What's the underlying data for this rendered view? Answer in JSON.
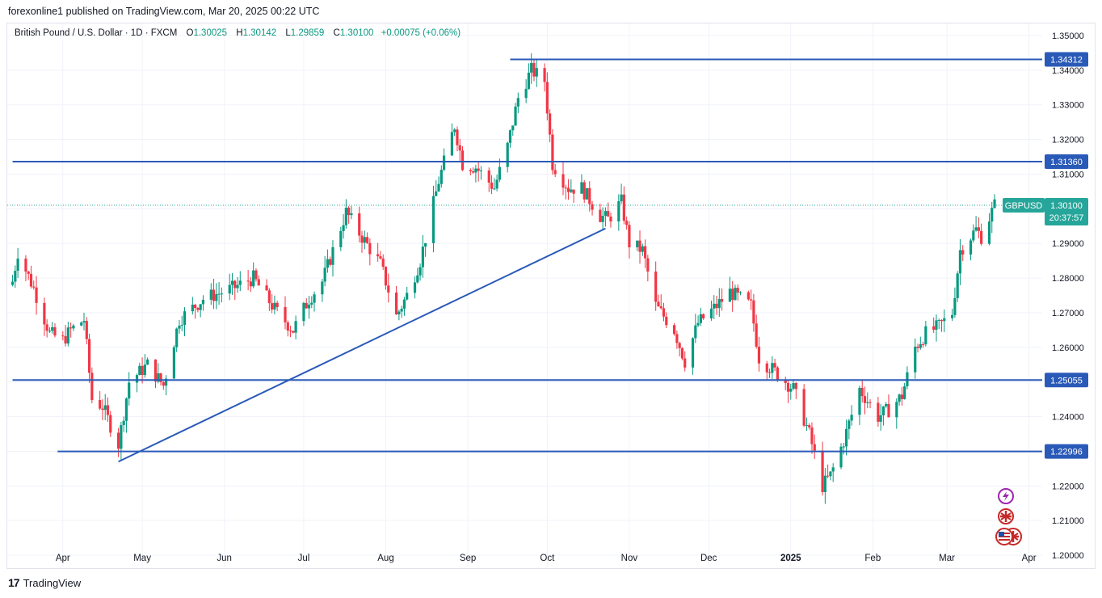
{
  "publisher": "forexonline1 published on TradingView.com, Mar 20, 2025 00:22 UTC",
  "legend": {
    "symbol": "British Pound / U.S. Dollar · 1D · FXCM",
    "open_label": "O",
    "open": "1.30025",
    "high_label": "H",
    "high": "1.30142",
    "low_label": "L",
    "low": "1.29859",
    "close_label": "C",
    "close": "1.30100",
    "change": "+0.00075 (+0.06%)"
  },
  "footer": {
    "brand": "TradingView",
    "logo_glyph": "17"
  },
  "icons": [
    "flash-icon",
    "uk-flag-icon",
    "us-flag-icon"
  ],
  "colors": {
    "up": "#089981",
    "down": "#f23645",
    "line": "#2a5ab8",
    "last": "#26a69a"
  },
  "chart_data": {
    "type": "candlestick",
    "symbol": "GBPUSD",
    "timeframe": "1D",
    "ylim": [
      1.1965,
      1.3535
    ],
    "y_ticks": [
      "1.35000",
      "1.34000",
      "1.33000",
      "1.32000",
      "1.31000",
      "1.30000",
      "1.29000",
      "1.28000",
      "1.27000",
      "1.26000",
      "1.25000",
      "1.24000",
      "1.23000",
      "1.22000",
      "1.21000",
      "1.20000"
    ],
    "x_ticks": [
      "Apr",
      "May",
      "Jun",
      "Jul",
      "Aug",
      "Sep",
      "Oct",
      "Nov",
      "Dec",
      "2025",
      "Feb",
      "Mar",
      "Apr"
    ],
    "last_price": {
      "symbol": "GBPUSD",
      "price": "1.30100",
      "countdown": "20:37:57",
      "value": 1.301
    },
    "horizontal_lines": [
      {
        "label": "1.34312",
        "value": 1.34312,
        "start_date": "2024-09-17"
      },
      {
        "label": "1.31360",
        "value": 1.3136,
        "start_date": "2024-03-13"
      },
      {
        "label": "1.25055",
        "value": 1.25055,
        "start_date": "2024-03-13"
      },
      {
        "label": "1.22996",
        "value": 1.22996,
        "start_date": "2024-03-30"
      }
    ],
    "trendline": {
      "from": {
        "date": "2024-04-22",
        "value": 1.227
      },
      "to": {
        "date": "2024-10-23",
        "value": 1.2943
      }
    },
    "anchors": [
      [
        "2024-03-13",
        1.279
      ],
      [
        "2024-03-15",
        1.2875
      ],
      [
        "2024-03-21",
        1.277
      ],
      [
        "2024-03-27",
        1.264
      ],
      [
        "2024-04-01",
        1.262
      ],
      [
        "2024-04-04",
        1.265
      ],
      [
        "2024-04-09",
        1.268
      ],
      [
        "2024-04-12",
        1.245
      ],
      [
        "2024-04-16",
        1.243
      ],
      [
        "2024-04-22",
        1.232
      ],
      [
        "2024-04-26",
        1.25
      ],
      [
        "2024-05-03",
        1.255
      ],
      [
        "2024-05-09",
        1.249
      ],
      [
        "2024-05-15",
        1.268
      ],
      [
        "2024-05-24",
        1.274
      ],
      [
        "2024-06-04",
        1.277
      ],
      [
        "2024-06-12",
        1.28
      ],
      [
        "2024-06-20",
        1.271
      ],
      [
        "2024-06-27",
        1.265
      ],
      [
        "2024-07-03",
        1.274
      ],
      [
        "2024-07-08",
        1.279
      ],
      [
        "2024-07-17",
        1.299
      ],
      [
        "2024-07-22",
        1.293
      ],
      [
        "2024-07-30",
        1.284
      ],
      [
        "2024-08-05",
        1.269
      ],
      [
        "2024-08-09",
        1.275
      ],
      [
        "2024-08-14",
        1.285
      ],
      [
        "2024-08-21",
        1.308
      ],
      [
        "2024-08-27",
        1.324
      ],
      [
        "2024-08-30",
        1.313
      ],
      [
        "2024-09-04",
        1.312
      ],
      [
        "2024-09-11",
        1.306
      ],
      [
        "2024-09-16",
        1.318
      ],
      [
        "2024-09-20",
        1.332
      ],
      [
        "2024-09-25",
        1.34
      ],
      [
        "2024-09-30",
        1.337
      ],
      [
        "2024-10-03",
        1.313
      ],
      [
        "2024-10-09",
        1.306
      ],
      [
        "2024-10-14",
        1.306
      ],
      [
        "2024-10-21",
        1.298
      ],
      [
        "2024-10-24",
        1.297
      ],
      [
        "2024-10-29",
        1.302
      ],
      [
        "2024-11-01",
        1.29
      ],
      [
        "2024-11-06",
        1.288
      ],
      [
        "2024-11-11",
        1.272
      ],
      [
        "2024-11-18",
        1.265
      ],
      [
        "2024-11-22",
        1.256
      ],
      [
        "2024-11-27",
        1.267
      ],
      [
        "2024-12-04",
        1.272
      ],
      [
        "2024-12-09",
        1.276
      ],
      [
        "2024-12-13",
        1.274
      ],
      [
        "2024-12-17",
        1.272
      ],
      [
        "2024-12-20",
        1.257
      ],
      [
        "2024-12-26",
        1.253
      ],
      [
        "2025-01-02",
        1.248
      ],
      [
        "2025-01-08",
        1.235
      ],
      [
        "2025-01-13",
        1.22
      ],
      [
        "2025-01-16",
        1.223
      ],
      [
        "2025-01-21",
        1.233
      ],
      [
        "2025-01-27",
        1.248
      ],
      [
        "2025-02-03",
        1.24
      ],
      [
        "2025-02-07",
        1.242
      ],
      [
        "2025-02-12",
        1.246
      ],
      [
        "2025-02-17",
        1.26
      ],
      [
        "2025-02-21",
        1.264
      ],
      [
        "2025-02-26",
        1.266
      ],
      [
        "2025-03-03",
        1.27
      ],
      [
        "2025-03-06",
        1.288
      ],
      [
        "2025-03-12",
        1.294
      ],
      [
        "2025-03-14",
        1.292
      ],
      [
        "2025-03-19",
        1.301
      ]
    ]
  }
}
